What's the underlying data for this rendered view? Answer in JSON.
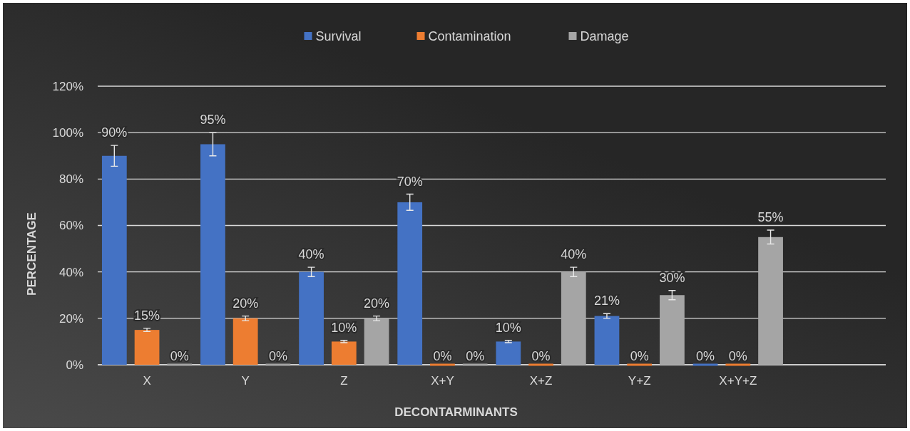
{
  "chart_data": {
    "type": "bar",
    "xlabel": "DECONTARMINANTS",
    "ylabel": "PERCENTAGE",
    "categories": [
      "X",
      "Y",
      "Z",
      "X+Y",
      "X+Z",
      "Y+Z",
      "X+Y+Z",
      null
    ],
    "series": [
      {
        "name": "Survival",
        "color": "#4472c4",
        "values": [
          90,
          95,
          40,
          70,
          10,
          21,
          0,
          null
        ],
        "errors": [
          4.5,
          5,
          2,
          3.5,
          0.5,
          1,
          null,
          null
        ],
        "value_labels": [
          "90%",
          "95%",
          "40%",
          "70%",
          "10%",
          "21%",
          "0%",
          null
        ]
      },
      {
        "name": "Contamination",
        "color": "#ed7d31",
        "values": [
          15,
          20,
          10,
          0,
          0,
          0,
          0,
          null
        ],
        "errors": [
          0.7,
          1,
          0.5,
          null,
          null,
          null,
          null,
          null
        ],
        "value_labels": [
          "15%",
          "20%",
          "10%",
          "0%",
          "0%",
          "0%",
          "0%",
          null
        ]
      },
      {
        "name": "Damage",
        "color": "#a5a5a5",
        "values": [
          0,
          0,
          20,
          0,
          40,
          30,
          55,
          null
        ],
        "errors": [
          null,
          null,
          1,
          null,
          2,
          2,
          3,
          null
        ],
        "value_labels": [
          "0%",
          "0%",
          "20%",
          "0%",
          "40%",
          "30%",
          "55%",
          null
        ]
      }
    ],
    "ylim": [
      0,
      120
    ],
    "yticks": [
      {
        "value": 0,
        "label": "0%"
      },
      {
        "value": 20,
        "label": "20%"
      },
      {
        "value": 40,
        "label": "40%"
      },
      {
        "value": 60,
        "label": "60%"
      },
      {
        "value": 80,
        "label": "80%"
      },
      {
        "value": 100,
        "label": "100%"
      },
      {
        "value": 120,
        "label": "120%"
      }
    ],
    "grid": "y",
    "legend": "top"
  }
}
